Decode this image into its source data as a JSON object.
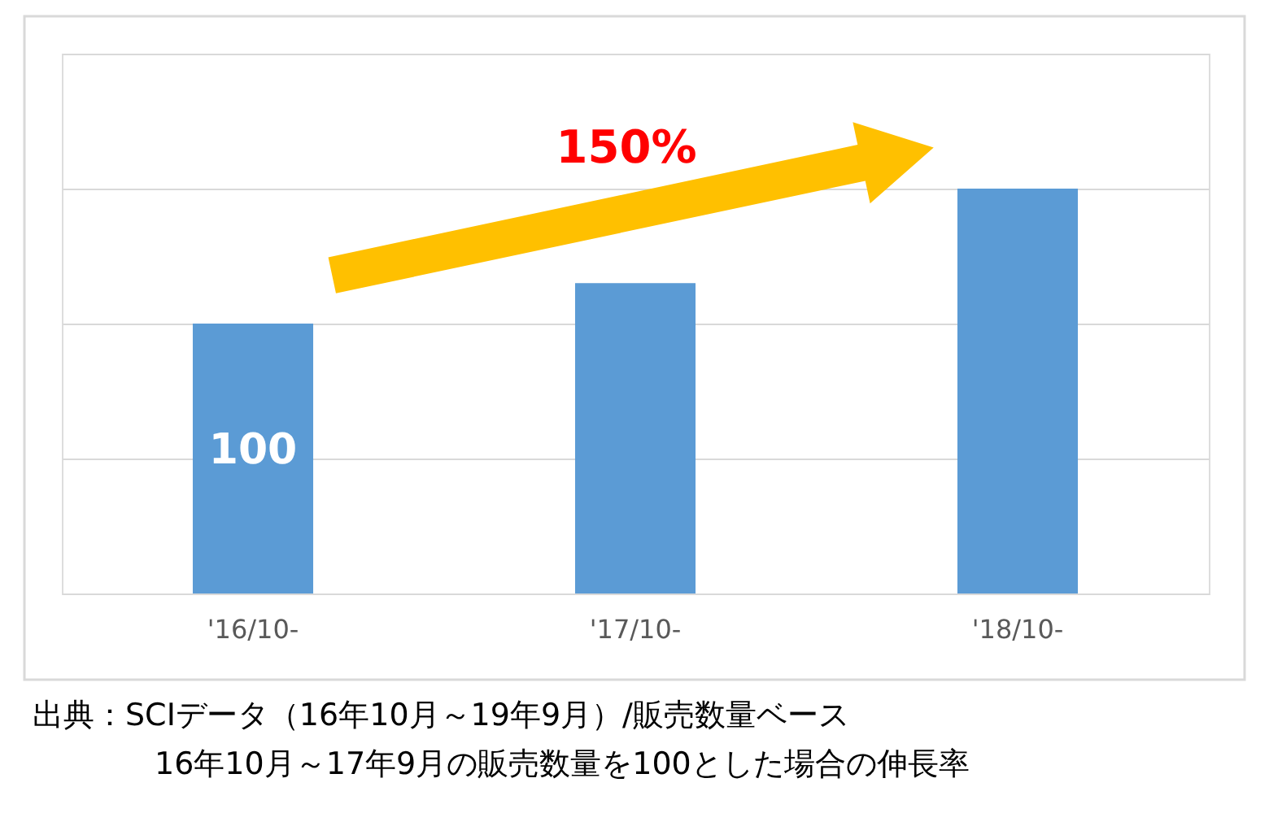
{
  "chart_data": {
    "type": "bar",
    "categories": [
      "'16/10-",
      "'17/10-",
      "'18/10-"
    ],
    "series": [
      {
        "color": "#5b9bd5",
        "values": [
          100,
          115,
          150
        ],
        "value_labels": [
          "100",
          null,
          null
        ]
      }
    ],
    "ylim": [
      0,
      200
    ],
    "yticks": [
      {
        "value": 0,
        "label": null
      },
      {
        "value": 50,
        "label": null
      },
      {
        "value": 100,
        "label": null
      },
      {
        "value": 150,
        "label": null
      },
      {
        "value": 200,
        "label": null
      }
    ],
    "tick_labels": "x",
    "grid": "y",
    "annotations": [
      "150%",
      "出典：SCIデータ（16年10月～19年9月）/販売数量ベース",
      "16年10月～17年9月の販売数量を100とした場合の伸長率"
    ]
  }
}
